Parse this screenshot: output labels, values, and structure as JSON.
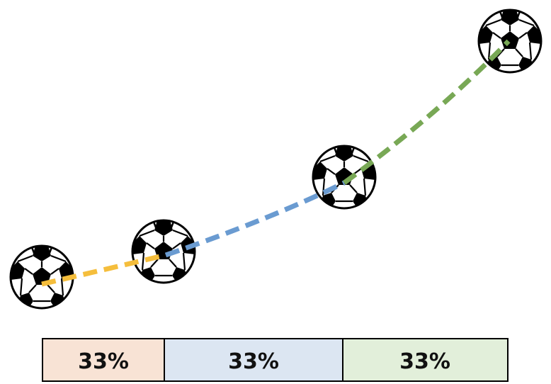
{
  "diagram": {
    "balls": [
      {
        "name": "ball-1"
      },
      {
        "name": "ball-2"
      },
      {
        "name": "ball-3"
      },
      {
        "name": "ball-4"
      }
    ],
    "paths": [
      {
        "name": "path-yellow",
        "color": "#F5BE3C",
        "style": "dashed"
      },
      {
        "name": "path-blue",
        "color": "#6A9BD1",
        "style": "dashed"
      },
      {
        "name": "path-green",
        "color": "#78A855",
        "style": "dashed"
      }
    ],
    "bar": {
      "segments": [
        {
          "label": "33%",
          "fill": "#F8E3D5"
        },
        {
          "label": "33%",
          "fill": "#DCE6F2"
        },
        {
          "label": "33%",
          "fill": "#E2EFDA"
        }
      ]
    }
  }
}
